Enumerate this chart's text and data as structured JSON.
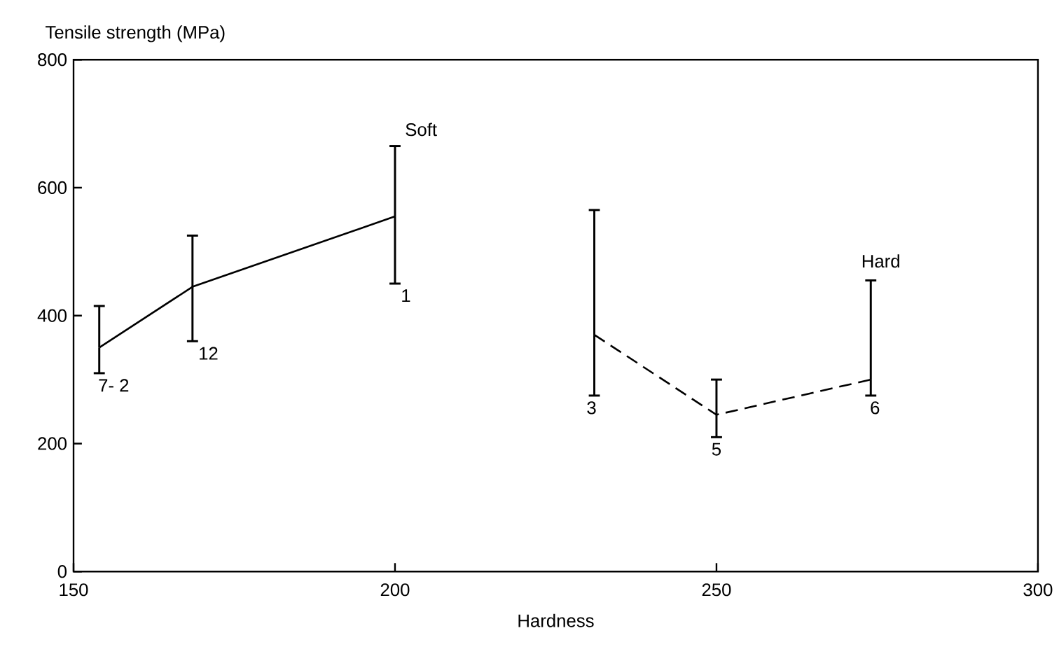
{
  "chart_data": {
    "type": "line",
    "ylabel": "Tensile strength (MPa)",
    "xlabel": "Hardness",
    "xlim": [
      150,
      300
    ],
    "xticks": [
      150,
      200,
      250,
      300
    ],
    "ylim": [
      0,
      800
    ],
    "yticks": [
      0,
      200,
      400,
      600,
      800
    ],
    "marker": "none",
    "series": [
      {
        "color": "#000000",
        "line_style": "solid",
        "x": [
          154,
          168.5,
          200
        ],
        "values": [
          350,
          445,
          555
        ],
        "errors": [
          [
            310,
            415
          ],
          [
            360,
            525
          ],
          [
            450,
            665
          ]
        ]
      },
      {
        "color": "#000000",
        "line_style": "dashed",
        "x": [
          231,
          250,
          274
        ],
        "values": [
          370,
          245,
          300
        ],
        "errors": [
          [
            275,
            565
          ],
          [
            210,
            300
          ],
          [
            275,
            455
          ]
        ]
      }
    ],
    "annotations": [
      {
        "text": "7- 2",
        "x": 154,
        "y": 310
      },
      {
        "text": "12",
        "x": 168.5,
        "y": 360
      },
      {
        "text": "1",
        "x": 200,
        "y": 450
      },
      {
        "text": "3",
        "x": 231,
        "y": 275
      },
      {
        "text": "5",
        "x": 250,
        "y": 210
      },
      {
        "text": "6",
        "x": 274,
        "y": 275
      },
      {
        "text": "Soft",
        "x": 200,
        "y": 665
      },
      {
        "text": "Hard",
        "x": 274,
        "y": 455
      }
    ]
  }
}
